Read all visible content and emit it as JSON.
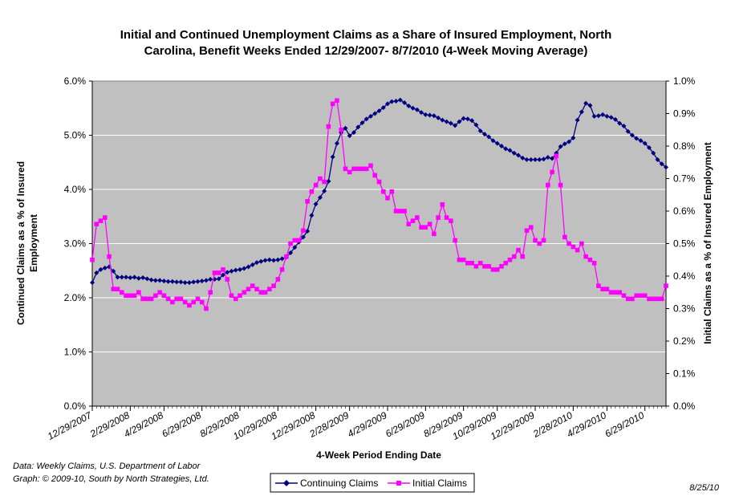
{
  "chart_data": {
    "type": "line",
    "title_lines": [
      "Initial and Continued Unemployment Claims as a Share of Insured Employment, North",
      "Carolina, Benefit Weeks Ended 12/29/2007- 8/7/2010 (4-Week Moving Average)"
    ],
    "xlabel": "4-Week Period Ending Date",
    "ylabel_left_lines": [
      "Continued Claims as a % of Insured",
      "Employment"
    ],
    "ylabel_right": "Initial Claims as a % of Insured Employment",
    "x_tick_labels": [
      "12/29/2007",
      "2/29/2008",
      "4/29/2008",
      "6/29/2008",
      "8/29/2008",
      "10/29/2008",
      "12/29/2008",
      "2/28/2009",
      "4/29/2009",
      "6/29/2009",
      "8/29/2009",
      "10/29/2009",
      "12/29/2009",
      "2/28/2010",
      "4/29/2010",
      "6/29/2010"
    ],
    "x_tick_weeks": [
      0,
      9,
      17,
      26,
      35,
      44,
      53,
      61,
      70,
      79,
      88,
      96,
      105,
      114,
      122,
      131
    ],
    "week_count": 137,
    "left_axis": {
      "min": 0,
      "max": 6,
      "ticks": [
        "0.0%",
        "1.0%",
        "2.0%",
        "3.0%",
        "4.0%",
        "5.0%",
        "6.0%"
      ]
    },
    "right_axis": {
      "min": 0,
      "max": 1,
      "ticks": [
        "0.0%",
        "0.1%",
        "0.2%",
        "0.3%",
        "0.4%",
        "0.5%",
        "0.6%",
        "0.7%",
        "0.8%",
        "0.9%",
        "1.0%"
      ]
    },
    "grid": true,
    "plot_background": "#c0c0c0",
    "legend_position": "bottom-center",
    "series": [
      {
        "name": "Continuing Claims",
        "axis": "left",
        "color": "#000080",
        "marker": "diamond",
        "values": [
          2.28,
          2.46,
          2.52,
          2.55,
          2.57,
          2.49,
          2.38,
          2.38,
          2.38,
          2.37,
          2.38,
          2.36,
          2.37,
          2.35,
          2.33,
          2.32,
          2.32,
          2.31,
          2.3,
          2.3,
          2.29,
          2.29,
          2.28,
          2.28,
          2.29,
          2.3,
          2.31,
          2.32,
          2.34,
          2.34,
          2.35,
          2.42,
          2.47,
          2.49,
          2.51,
          2.52,
          2.54,
          2.57,
          2.61,
          2.65,
          2.67,
          2.69,
          2.7,
          2.69,
          2.7,
          2.72,
          2.75,
          2.83,
          2.93,
          3.03,
          3.12,
          3.23,
          3.52,
          3.73,
          3.85,
          3.97,
          4.15,
          4.6,
          4.85,
          5.05,
          5.13,
          4.99,
          5.05,
          5.15,
          5.23,
          5.3,
          5.35,
          5.4,
          5.45,
          5.51,
          5.58,
          5.62,
          5.63,
          5.65,
          5.6,
          5.54,
          5.5,
          5.47,
          5.42,
          5.38,
          5.37,
          5.36,
          5.32,
          5.28,
          5.25,
          5.22,
          5.18,
          5.25,
          5.31,
          5.3,
          5.27,
          5.19,
          5.08,
          5.02,
          4.97,
          4.9,
          4.85,
          4.8,
          4.75,
          4.72,
          4.67,
          4.63,
          4.58,
          4.55,
          4.55,
          4.55,
          4.55,
          4.56,
          4.59,
          4.57,
          4.67,
          4.79,
          4.84,
          4.88,
          4.95,
          5.28,
          5.43,
          5.59,
          5.55,
          5.35,
          5.36,
          5.38,
          5.35,
          5.33,
          5.29,
          5.22,
          5.17,
          5.07,
          5.0,
          4.94,
          4.9,
          4.85,
          4.77,
          4.67,
          4.55,
          4.47,
          4.41
        ]
      },
      {
        "name": "Initial Claims",
        "axis": "right",
        "color": "#ff00ff",
        "marker": "square",
        "values": [
          0.45,
          0.56,
          0.57,
          0.58,
          0.46,
          0.36,
          0.36,
          0.35,
          0.34,
          0.34,
          0.34,
          0.35,
          0.33,
          0.33,
          0.33,
          0.34,
          0.35,
          0.34,
          0.33,
          0.32,
          0.33,
          0.33,
          0.32,
          0.31,
          0.32,
          0.33,
          0.32,
          0.3,
          0.35,
          0.41,
          0.41,
          0.42,
          0.39,
          0.34,
          0.33,
          0.34,
          0.35,
          0.36,
          0.37,
          0.36,
          0.35,
          0.35,
          0.36,
          0.37,
          0.39,
          0.42,
          0.46,
          0.5,
          0.51,
          0.51,
          0.54,
          0.63,
          0.66,
          0.68,
          0.7,
          0.69,
          0.86,
          0.93,
          0.94,
          0.85,
          0.73,
          0.72,
          0.73,
          0.73,
          0.73,
          0.73,
          0.74,
          0.71,
          0.69,
          0.66,
          0.64,
          0.66,
          0.6,
          0.6,
          0.6,
          0.56,
          0.57,
          0.58,
          0.55,
          0.55,
          0.56,
          0.53,
          0.58,
          0.62,
          0.58,
          0.57,
          0.51,
          0.45,
          0.45,
          0.44,
          0.44,
          0.43,
          0.44,
          0.43,
          0.43,
          0.42,
          0.42,
          0.43,
          0.44,
          0.45,
          0.46,
          0.48,
          0.46,
          0.54,
          0.55,
          0.51,
          0.5,
          0.51,
          0.68,
          0.72,
          0.77,
          0.68,
          0.52,
          0.5,
          0.49,
          0.48,
          0.5,
          0.46,
          0.45,
          0.44,
          0.37,
          0.36,
          0.36,
          0.35,
          0.35,
          0.35,
          0.34,
          0.33,
          0.33,
          0.34,
          0.34,
          0.34,
          0.33,
          0.33,
          0.33,
          0.33,
          0.37
        ]
      }
    ]
  },
  "footnote_lines": [
    "Data:  Weekly Claims, U.S. Department of Labor",
    "Graph: © 2009-10, South by North Strategies, Ltd."
  ],
  "date_stamp": "8/25/10",
  "legend": {
    "items": [
      "Continuing Claims",
      "Initial Claims"
    ]
  }
}
